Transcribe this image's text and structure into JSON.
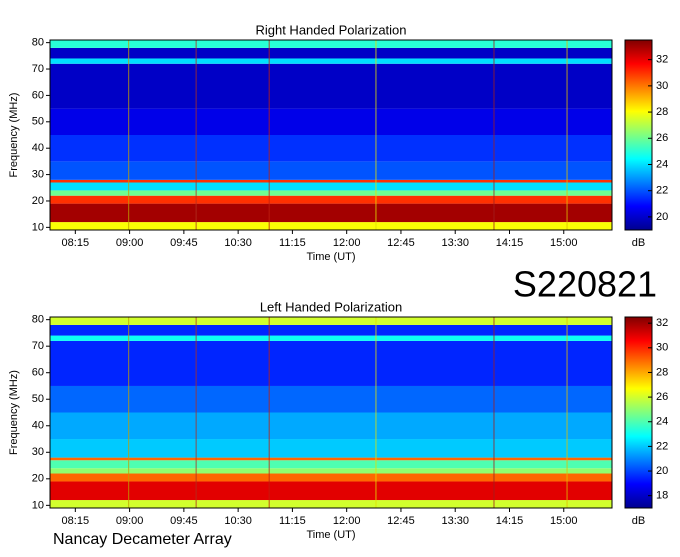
{
  "chart_data": [
    {
      "type": "heatmap",
      "title": "Right Handed Polarization",
      "x_label": "Time (UT)",
      "y_label": "Frequency (MHz)",
      "colorbar_label": "dB",
      "xlim": [
        474,
        940
      ],
      "xticks": [
        {
          "value": 495,
          "label": "08:15"
        },
        {
          "value": 540,
          "label": "09:00"
        },
        {
          "value": 585,
          "label": "09:45"
        },
        {
          "value": 630,
          "label": "10:30"
        },
        {
          "value": 675,
          "label": "11:15"
        },
        {
          "value": 720,
          "label": "12:00"
        },
        {
          "value": 765,
          "label": "12:45"
        },
        {
          "value": 810,
          "label": "13:30"
        },
        {
          "value": 855,
          "label": "14:15"
        },
        {
          "value": 900,
          "label": "15:00"
        }
      ],
      "ylim": [
        9,
        81
      ],
      "yticks": [
        10,
        20,
        30,
        40,
        50,
        60,
        70,
        80
      ],
      "x_bins": [
        474,
        940
      ],
      "y_bins": [
        9,
        12,
        19,
        22,
        24,
        27,
        28,
        35,
        45,
        55,
        72,
        74,
        78,
        81
      ],
      "z": [
        [
          28
        ],
        [
          33
        ],
        [
          31
        ],
        [
          26
        ],
        [
          24
        ],
        [
          31
        ],
        [
          22
        ],
        [
          21.5
        ],
        [
          20.5
        ],
        [
          20
        ],
        [
          24
        ],
        [
          20
        ],
        [
          25
        ]
      ],
      "clim": [
        19,
        33.5
      ],
      "cticks": [
        20,
        22,
        24,
        26,
        28,
        30,
        32
      ]
    },
    {
      "type": "heatmap",
      "title": "Left Handed Polarization",
      "x_label": "Time (UT)",
      "y_label": "Frequency (MHz)",
      "colorbar_label": "dB",
      "xlim": [
        474,
        940
      ],
      "xticks": [
        {
          "value": 495,
          "label": "08:15"
        },
        {
          "value": 540,
          "label": "09:00"
        },
        {
          "value": 585,
          "label": "09:45"
        },
        {
          "value": 630,
          "label": "10:30"
        },
        {
          "value": 675,
          "label": "11:15"
        },
        {
          "value": 720,
          "label": "12:00"
        },
        {
          "value": 765,
          "label": "12:45"
        },
        {
          "value": 810,
          "label": "13:30"
        },
        {
          "value": 855,
          "label": "14:15"
        },
        {
          "value": 900,
          "label": "15:00"
        }
      ],
      "ylim": [
        9,
        81
      ],
      "yticks": [
        10,
        20,
        30,
        40,
        50,
        60,
        70,
        80
      ],
      "x_bins": [
        474,
        940
      ],
      "y_bins": [
        9,
        12,
        19,
        22,
        24,
        27,
        28,
        35,
        45,
        55,
        72,
        74,
        78,
        81
      ],
      "z": [
        [
          26
        ],
        [
          31
        ],
        [
          29
        ],
        [
          25
        ],
        [
          24
        ],
        [
          29
        ],
        [
          22
        ],
        [
          21.5
        ],
        [
          20.5
        ],
        [
          19.5
        ],
        [
          23
        ],
        [
          19.5
        ],
        [
          26
        ]
      ],
      "clim": [
        17,
        32.5
      ],
      "cticks": [
        18,
        20,
        22,
        24,
        26,
        28,
        30,
        32
      ]
    }
  ],
  "event_id": "S220821",
  "observatory": "Nancay Decameter Array"
}
